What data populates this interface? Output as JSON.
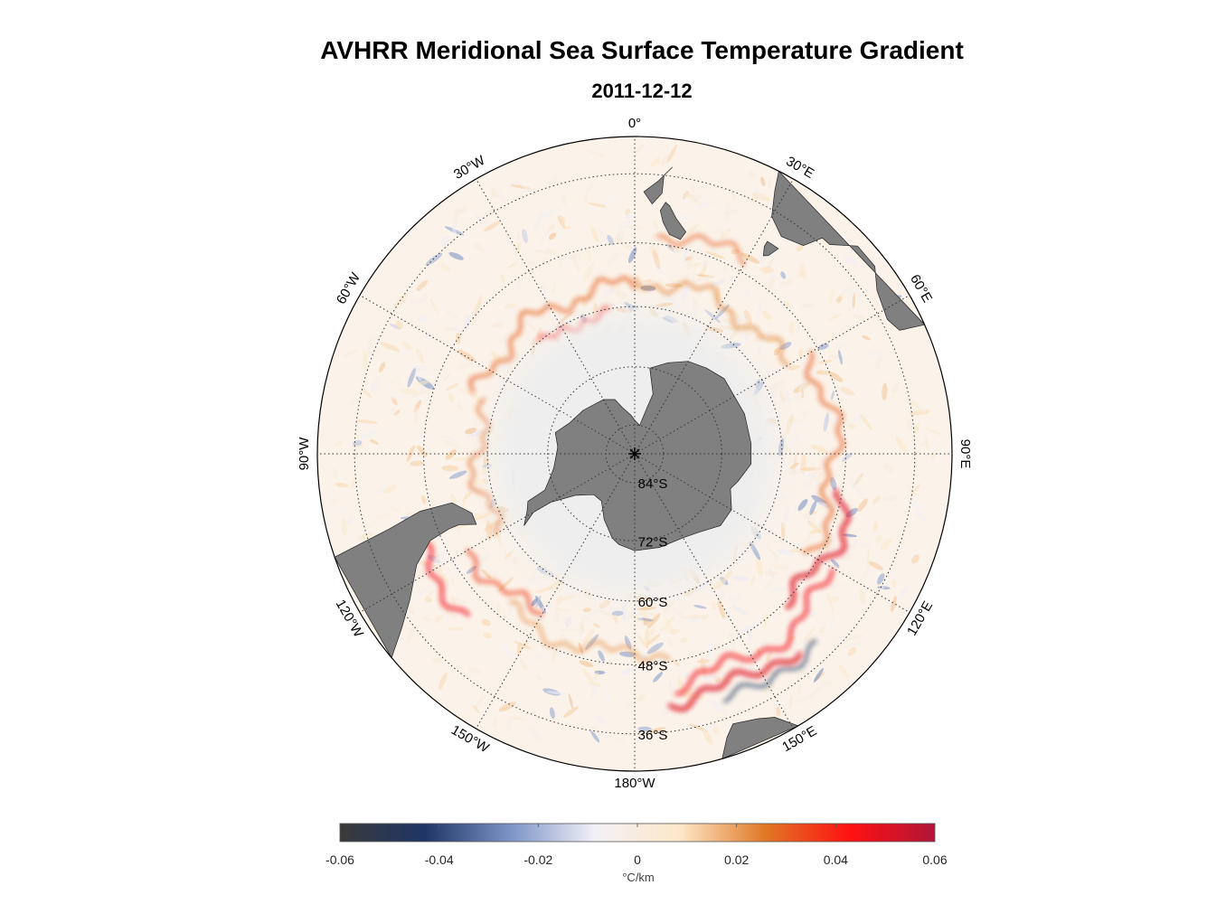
{
  "title": "AVHRR Meridional Sea Surface Temperature Gradient",
  "date": "2011-12-12",
  "map": {
    "projection": "south-polar-stereographic",
    "lat_limit": -30,
    "land_color": "#808080",
    "ice_color": "#eeeeee",
    "longitude_labels": [
      {
        "lon": 0,
        "text": "0°"
      },
      {
        "lon": 30,
        "text": "30°E"
      },
      {
        "lon": 60,
        "text": "60°E"
      },
      {
        "lon": 90,
        "text": "90°E"
      },
      {
        "lon": 120,
        "text": "120°E"
      },
      {
        "lon": 150,
        "text": "150°E"
      },
      {
        "lon": 180,
        "text": "180°W"
      },
      {
        "lon": -150,
        "text": "150°W"
      },
      {
        "lon": -120,
        "text": "120°W"
      },
      {
        "lon": -90,
        "text": "90°W"
      },
      {
        "lon": -60,
        "text": "60°W"
      },
      {
        "lon": -30,
        "text": "30°W"
      }
    ],
    "latitude_labels": [
      {
        "lat": -84,
        "text": "84°S"
      },
      {
        "lat": -72,
        "text": "72°S"
      },
      {
        "lat": -60,
        "text": "60°S"
      },
      {
        "lat": -48,
        "text": "48°S"
      },
      {
        "lat": -36,
        "text": "36°S"
      }
    ],
    "grid_latitudes": [
      -84,
      -72,
      -60,
      -48,
      -36
    ],
    "grid_longitudes": [
      0,
      30,
      60,
      90,
      120,
      150,
      180,
      -150,
      -120,
      -90,
      -60,
      -30
    ]
  },
  "colorbar": {
    "min": -0.06,
    "max": 0.06,
    "ticks": [
      "-0.06",
      "-0.04",
      "-0.02",
      "0",
      "0.02",
      "0.04",
      "0.06"
    ],
    "tick_values": [
      -0.06,
      -0.04,
      -0.02,
      0,
      0.02,
      0.04,
      0.06
    ],
    "unit": "°C/km",
    "colors": [
      "#3a3a3a",
      "#1f3566",
      "#7b93c6",
      "#f2f0f6",
      "#fde7c8",
      "#e07826",
      "#ff1111",
      "#b0153a"
    ]
  }
}
